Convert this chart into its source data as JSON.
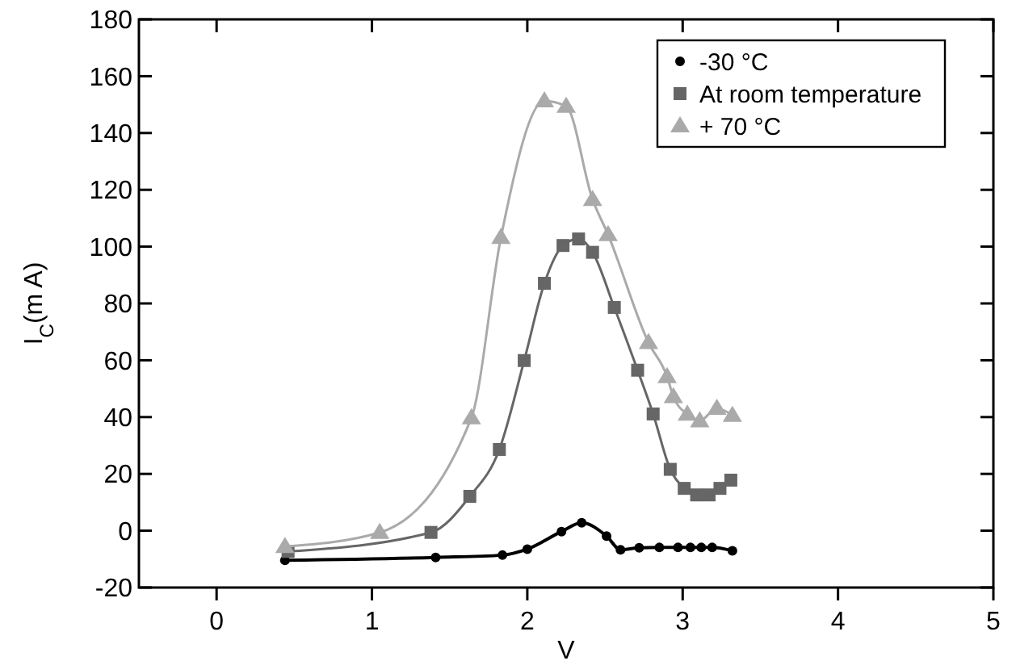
{
  "chart_data": {
    "type": "line",
    "xlabel": "V",
    "ylabel": "I$_{C}$(m A)",
    "xlim": [
      -0.5,
      5
    ],
    "ylim": [
      -20,
      180
    ],
    "xticks": [
      0,
      1,
      2,
      3,
      4,
      5
    ],
    "yticks": [
      -20,
      0,
      20,
      40,
      60,
      80,
      100,
      120,
      140,
      160,
      180
    ],
    "legend": "top right",
    "grid": false,
    "series": [
      {
        "name": "-30 °C",
        "color": "#000000",
        "marker": "circle",
        "x": [
          0.44,
          1.41,
          1.84,
          2.0,
          2.22,
          2.35,
          2.51,
          2.6,
          2.72,
          2.85,
          2.97,
          3.05,
          3.12,
          3.19,
          3.32
        ],
        "values": [
          -10.4,
          -9.4,
          -8.6,
          -6.5,
          -0.3,
          2.8,
          -1.9,
          -6.7,
          -6,
          -5.9,
          -5.9,
          -5.9,
          -5.9,
          -5.9,
          -7.1
        ]
      },
      {
        "name": "At room temperature",
        "color": "#666666",
        "marker": "square",
        "x": [
          0.46,
          1.38,
          1.63,
          1.82,
          1.98,
          2.11,
          2.23,
          2.33,
          2.42,
          2.56,
          2.71,
          2.81,
          2.92,
          3.01,
          3.09,
          3.17,
          3.24,
          3.31
        ],
        "values": [
          -7.3,
          -0.6,
          12.1,
          28.6,
          59.9,
          87.1,
          100.4,
          102.7,
          98,
          78.6,
          56.5,
          41.1,
          21.6,
          14.9,
          12.6,
          12.6,
          14.9,
          17.8
        ]
      },
      {
        "name": "+ 70 °C",
        "color": "#aaaaaa",
        "marker": "triangle",
        "x": [
          0.44,
          1.05,
          1.64,
          1.83,
          2.11,
          2.25,
          2.42,
          2.52,
          2.78,
          2.9,
          2.94,
          3.03,
          3.11,
          3.22,
          3.32
        ],
        "values": [
          -5.6,
          -0.6,
          39.7,
          103.2,
          151.3,
          149.4,
          116.6,
          104.2,
          66.2,
          54.2,
          47.2,
          41,
          38.7,
          43.1,
          40.6
        ]
      }
    ]
  }
}
